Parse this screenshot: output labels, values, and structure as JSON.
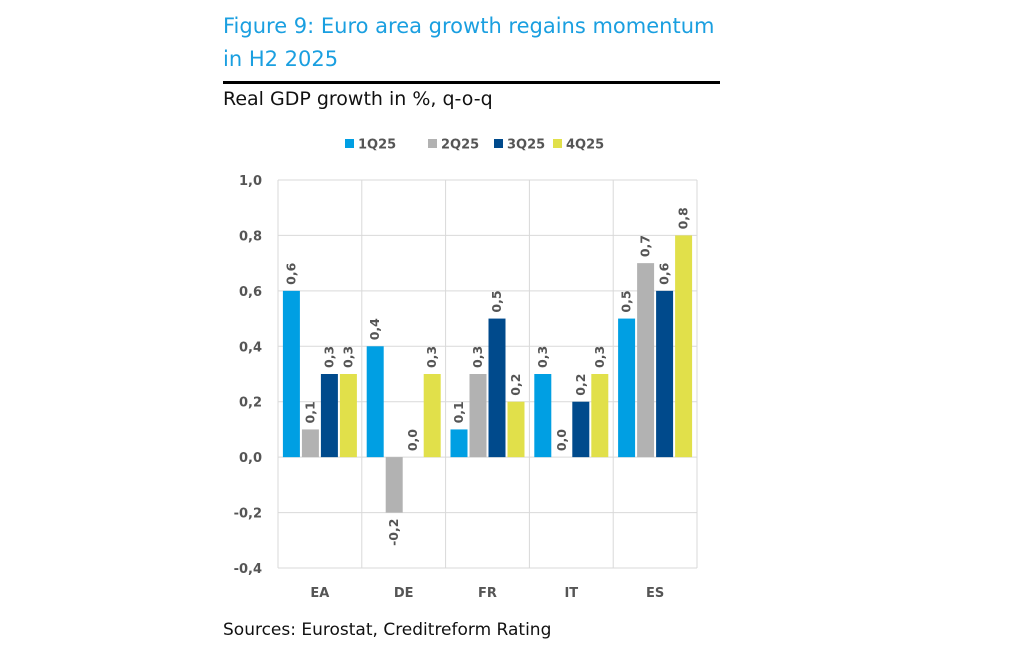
{
  "figure": {
    "title": "Figure 9: Euro area growth regains momentum in H2 2025",
    "title_line1": "Figure 9: Euro area growth regains momentum",
    "title_line2": "in H2 2025",
    "subtitle": "Real GDP growth in %, q-o-q",
    "source": "Sources: Eurostat, Creditreform Rating",
    "title_color": "#1a9fe0"
  },
  "chart_data": {
    "type": "bar",
    "title": "Figure 9: Euro area growth regains momentum in H2 2025",
    "subtitle": "Real GDP growth in %, q-o-q",
    "xlabel": "",
    "ylabel": "",
    "categories": [
      "EA",
      "DE",
      "FR",
      "IT",
      "ES"
    ],
    "ylim": [
      -0.4,
      1.0
    ],
    "yticks": [
      -0.4,
      -0.2,
      0.0,
      0.2,
      0.4,
      0.6,
      0.8,
      1.0
    ],
    "ytick_labels": [
      "-0,4",
      "-0,2",
      "0,0",
      "0,2",
      "0,4",
      "0,6",
      "0,8",
      "1,0"
    ],
    "grid": true,
    "legend_position": "top-center",
    "series": [
      {
        "name": "1Q25",
        "color": "#009fe3",
        "values": [
          0.6,
          0.4,
          0.1,
          0.3,
          0.5
        ],
        "labels": [
          "0,6",
          "0,4",
          "0,1",
          "0,3",
          "0,5"
        ]
      },
      {
        "name": "2Q25",
        "color": "#b2b2b2",
        "values": [
          0.1,
          -0.2,
          0.3,
          0.0,
          0.7
        ],
        "labels": [
          "0,1",
          "-0,2",
          "0,3",
          "0,0",
          "0,7"
        ]
      },
      {
        "name": "3Q25",
        "color": "#004a8c",
        "values": [
          0.3,
          0.0,
          0.5,
          0.2,
          0.6
        ],
        "labels": [
          "0,3",
          "0,0",
          "0,5",
          "0,2",
          "0,6"
        ]
      },
      {
        "name": "4Q25",
        "color": "#e1e04a",
        "values": [
          0.3,
          0.3,
          0.2,
          0.3,
          0.8
        ],
        "labels": [
          "0,3",
          "0,3",
          "0,2",
          "0,3",
          "0,8"
        ]
      }
    ],
    "source": "Sources: Eurostat, Creditreform Rating"
  }
}
